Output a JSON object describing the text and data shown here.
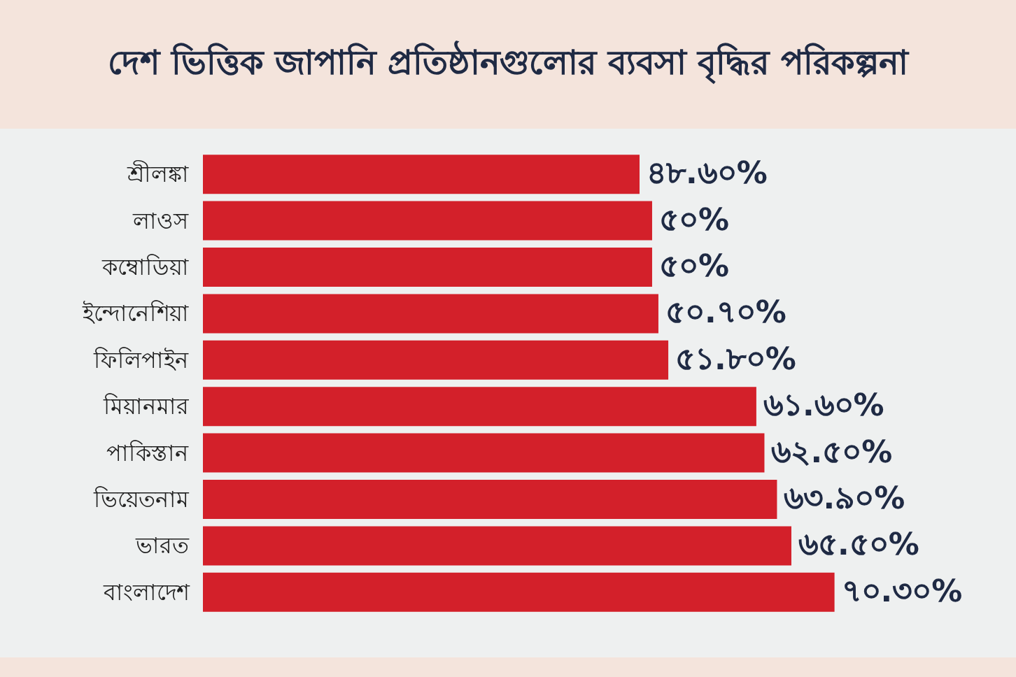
{
  "chart_data": {
    "type": "bar",
    "orientation": "horizontal",
    "title": "দেশ ভিত্তিক জাপানি প্রতিষ্ঠানগুলোর ব্যবসা বৃদ্ধির পরিকল্পনা",
    "categories": [
      "শ্রীলঙ্কা",
      "লাওস",
      "কম্বোডিয়া",
      "ইন্দোনেশিয়া",
      "ফিলিপাইন",
      "মিয়ানমার",
      "পাকিস্তান",
      "ভিয়েতনাম",
      "ভারত",
      "বাংলাদেশ"
    ],
    "values": [
      48.6,
      50,
      50,
      50.7,
      51.8,
      61.6,
      62.5,
      63.9,
      65.5,
      70.3
    ],
    "value_labels": [
      "৪৮.৬০%",
      "৫০%",
      "৫০%",
      "৫০.৭০%",
      "৫১.৮০%",
      "৬১.৬০%",
      "৬২.৫০%",
      "৬৩.৯০%",
      "৬৫.৫০%",
      "৭০.৩০%"
    ],
    "color": "#d3202a"
  }
}
